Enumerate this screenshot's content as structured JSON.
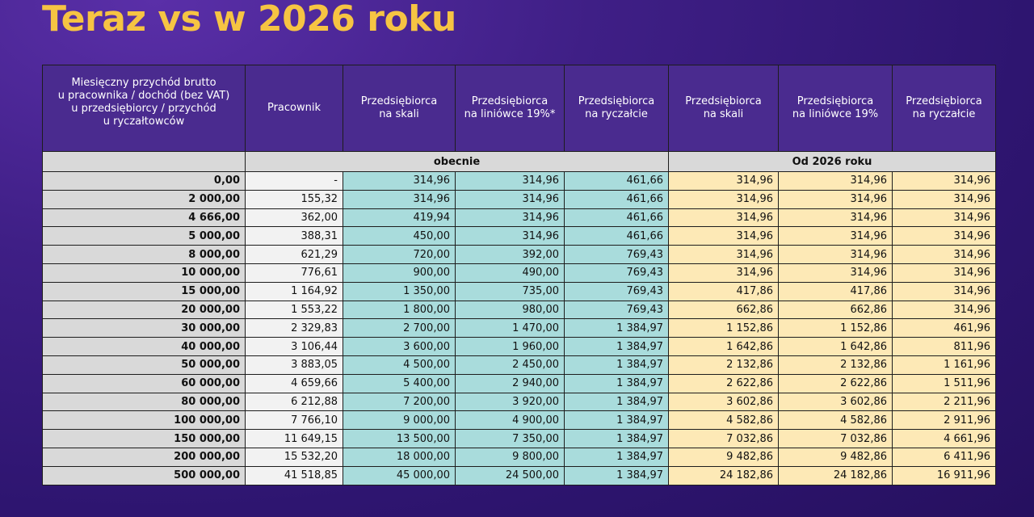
{
  "title": "Teraz vs w 2026 roku",
  "colors": {
    "title": "#f6c443",
    "header_bg": "#4a2b8f",
    "now_bg": "#a9dcdc",
    "future_bg": "#fde9b6",
    "income_bg": "#d9d9d9"
  },
  "headers": [
    "Miesięczny przychód brutto\nu pracownika / dochód (bez VAT)\nu przedsiębiorcy / przychód\nu ryczałtowców",
    "Pracownik",
    "Przedsiębiorca\nna skali",
    "Przedsiębiorca\nna liniówce 19%*",
    "Przedsiębiorca\nna ryczałcie",
    "Przedsiębiorca\nna skali",
    "Przedsiębiorca\nna liniówce 19%",
    "Przedsiębiorca\nna ryczałcie"
  ],
  "groups": {
    "current": "obecnie",
    "future": "Od 2026 roku"
  },
  "rows": [
    [
      "0,00",
      "-",
      "314,96",
      "314,96",
      "461,66",
      "314,96",
      "314,96",
      "314,96"
    ],
    [
      "2 000,00",
      "155,32",
      "314,96",
      "314,96",
      "461,66",
      "314,96",
      "314,96",
      "314,96"
    ],
    [
      "4 666,00",
      "362,00",
      "419,94",
      "314,96",
      "461,66",
      "314,96",
      "314,96",
      "314,96"
    ],
    [
      "5 000,00",
      "388,31",
      "450,00",
      "314,96",
      "461,66",
      "314,96",
      "314,96",
      "314,96"
    ],
    [
      "8 000,00",
      "621,29",
      "720,00",
      "392,00",
      "769,43",
      "314,96",
      "314,96",
      "314,96"
    ],
    [
      "10 000,00",
      "776,61",
      "900,00",
      "490,00",
      "769,43",
      "314,96",
      "314,96",
      "314,96"
    ],
    [
      "15 000,00",
      "1 164,92",
      "1 350,00",
      "735,00",
      "769,43",
      "417,86",
      "417,86",
      "314,96"
    ],
    [
      "20 000,00",
      "1 553,22",
      "1 800,00",
      "980,00",
      "769,43",
      "662,86",
      "662,86",
      "314,96"
    ],
    [
      "30 000,00",
      "2 329,83",
      "2 700,00",
      "1 470,00",
      "1 384,97",
      "1 152,86",
      "1 152,86",
      "461,96"
    ],
    [
      "40 000,00",
      "3 106,44",
      "3 600,00",
      "1 960,00",
      "1 384,97",
      "1 642,86",
      "1 642,86",
      "811,96"
    ],
    [
      "50 000,00",
      "3 883,05",
      "4 500,00",
      "2 450,00",
      "1 384,97",
      "2 132,86",
      "2 132,86",
      "1 161,96"
    ],
    [
      "60 000,00",
      "4 659,66",
      "5 400,00",
      "2 940,00",
      "1 384,97",
      "2 622,86",
      "2 622,86",
      "1 511,96"
    ],
    [
      "80 000,00",
      "6 212,88",
      "7 200,00",
      "3 920,00",
      "1 384,97",
      "3 602,86",
      "3 602,86",
      "2 211,96"
    ],
    [
      "100 000,00",
      "7 766,10",
      "9 000,00",
      "4 900,00",
      "1 384,97",
      "4 582,86",
      "4 582,86",
      "2 911,96"
    ],
    [
      "150 000,00",
      "11 649,15",
      "13 500,00",
      "7 350,00",
      "1 384,97",
      "7 032,86",
      "7 032,86",
      "4 661,96"
    ],
    [
      "200 000,00",
      "15 532,20",
      "18 000,00",
      "9 800,00",
      "1 384,97",
      "9 482,86",
      "9 482,86",
      "6 411,96"
    ],
    [
      "500 000,00",
      "41 518,85",
      "45 000,00",
      "24 500,00",
      "1 384,97",
      "24 182,86",
      "24 182,86",
      "16 911,96"
    ]
  ]
}
